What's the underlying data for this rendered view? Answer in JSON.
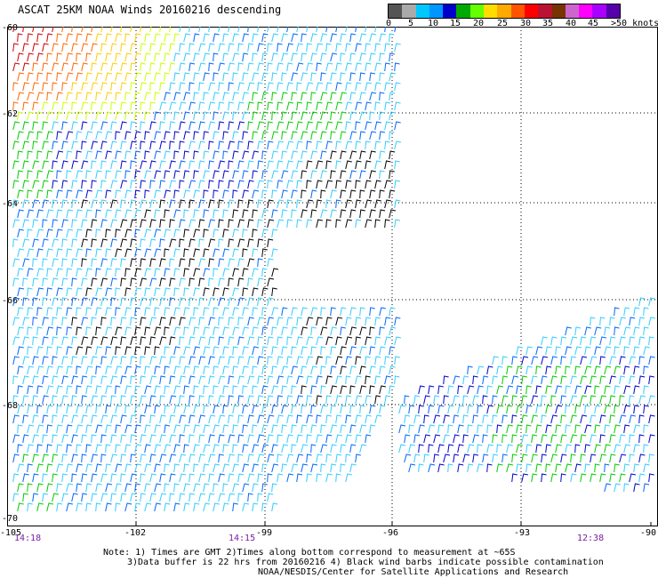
{
  "header": {
    "title": "ASCAT 25KM NOAA Winds 20160216 descending"
  },
  "colorbar": {
    "colors": [
      "#555555",
      "#aaaaaa",
      "#00c8ff",
      "#0096ff",
      "#0000cc",
      "#00aa00",
      "#66ff00",
      "#ffdd00",
      "#ffaa00",
      "#ff5500",
      "#ff0000",
      "#bb1133",
      "#773300",
      "#cc66cc",
      "#ff00ff",
      "#aa00ff",
      "#5500aa"
    ],
    "labels": [
      "0",
      "5",
      "10",
      "15",
      "20",
      "25",
      "30",
      "35",
      "40",
      "45",
      ">50 knots"
    ]
  },
  "map": {
    "latitudes": [
      "-60",
      "-62",
      "-64",
      "-66",
      "-68",
      "-70"
    ],
    "longitudes": [
      "-105",
      "-102",
      "-99",
      "-96",
      "-93",
      "-90"
    ],
    "times": [
      "14:18",
      "14:15",
      "12:38"
    ],
    "barb_colors": {
      "calm": "#000000",
      "light": "#33ccff",
      "moderate": "#0066ff",
      "fresh": "#0000cc",
      "strong": "#00cc00",
      "gale": "#ccff00",
      "storm": "#ffcc00",
      "severe": "#ff6600",
      "extreme": "#cc0000"
    }
  },
  "notes": {
    "line1": "Note: 1) Times are GMT 2)Times along bottom correspond to measurement at ~65S",
    "line2": "3)Data buffer is 22 hrs from 20160216 4) Black wind barbs indicate possible contamination",
    "line3": "NOAA/NESDIS/Center for Satellite Applications and Research"
  }
}
